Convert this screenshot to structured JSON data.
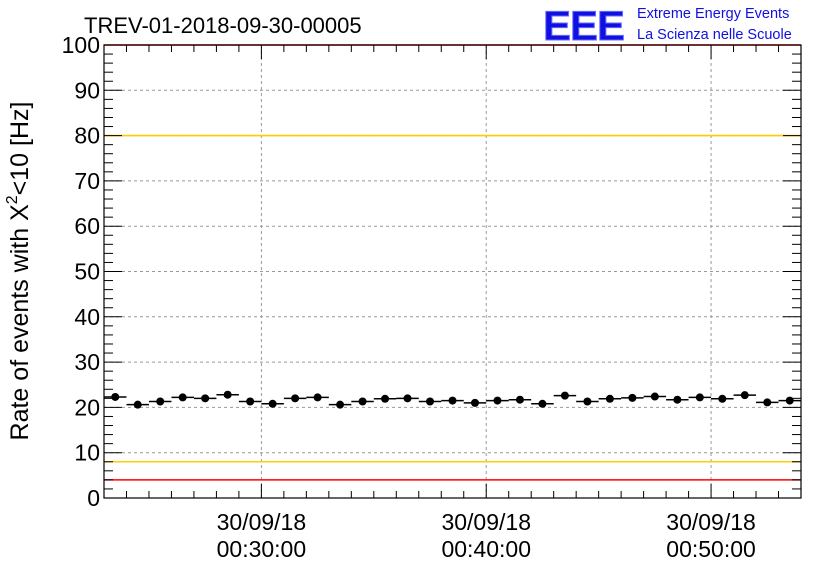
{
  "title": "TREV-01-2018-09-30-00005",
  "logo": {
    "mark": "EEE",
    "line1": "Extreme Energy Events",
    "line2": "La Scienza nelle Scuole",
    "color": "#1010e0"
  },
  "chart_data": {
    "type": "scatter",
    "ylabel_prefix": "Rate of events with X",
    "ylabel_sup": "2",
    "ylabel_suffix": "<10 [Hz]",
    "xlabel": "",
    "ylim": [
      0,
      100
    ],
    "xlim_minutes": [
      23,
      54
    ],
    "y_ticks": [
      "0",
      "10",
      "20",
      "30",
      "40",
      "50",
      "60",
      "70",
      "80",
      "90",
      "100"
    ],
    "x_ticks": [
      {
        "minute": 30,
        "date": "30/09/18",
        "time": "00:30:00"
      },
      {
        "minute": 40,
        "date": "30/09/18",
        "time": "00:40:00"
      },
      {
        "minute": 50,
        "date": "30/09/18",
        "time": "00:50:00"
      }
    ],
    "bin_width_minutes": 1,
    "grid": true,
    "series": [
      {
        "x_minutes": [
          23.5,
          24.5,
          25.5,
          26.5,
          27.5,
          28.5,
          29.5,
          30.5,
          31.5,
          32.5,
          33.5,
          34.5,
          35.5,
          36.5,
          37.5,
          38.5,
          39.5,
          40.5,
          41.5,
          42.5,
          43.5,
          44.5,
          45.5,
          46.5,
          47.5,
          48.5,
          49.5,
          50.5,
          51.5,
          52.5,
          53.5
        ],
        "values": [
          22.3,
          20.6,
          21.3,
          22.2,
          22.0,
          22.8,
          21.3,
          20.8,
          22.0,
          22.2,
          20.6,
          21.3,
          21.9,
          22.0,
          21.3,
          21.5,
          21.0,
          21.5,
          21.7,
          20.8,
          22.6,
          21.3,
          21.9,
          22.1,
          22.4,
          21.7,
          22.2,
          21.9,
          22.7,
          21.1,
          21.5
        ],
        "errors": [
          0.6,
          0.6,
          0.6,
          0.6,
          0.6,
          0.6,
          0.6,
          0.6,
          0.6,
          0.6,
          0.6,
          0.6,
          0.6,
          0.6,
          0.6,
          0.6,
          0.6,
          0.6,
          0.6,
          0.6,
          0.6,
          0.6,
          0.6,
          0.6,
          0.6,
          0.6,
          0.6,
          0.6,
          0.6,
          0.6,
          0.6
        ],
        "color": "#000000"
      }
    ],
    "reference_lines": [
      {
        "value": 100,
        "color": "#ff0000"
      },
      {
        "value": 80,
        "color": "#ffcc00"
      },
      {
        "value": 8,
        "color": "#ffcc00"
      },
      {
        "value": 4,
        "color": "#ff0000"
      }
    ]
  }
}
